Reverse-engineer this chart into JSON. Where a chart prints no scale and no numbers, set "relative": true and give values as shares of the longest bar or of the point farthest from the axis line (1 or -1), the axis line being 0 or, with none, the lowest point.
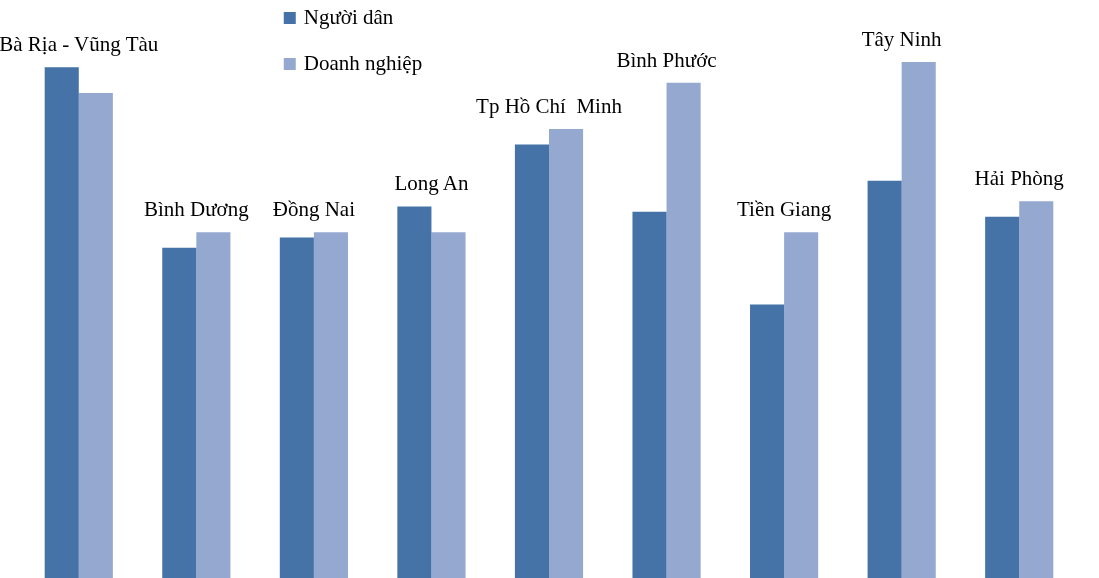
{
  "chart_data": {
    "type": "bar",
    "relative": true,
    "legend": "top",
    "categories": [
      "Bà Rịa - Vũng Tàu",
      "Bình Dương",
      "Đồng Nai",
      "Long An",
      "Tp Hồ Chí  Minh",
      "Bình Phước",
      "Tiền Giang",
      "Tây Ninh",
      "Hải Phòng"
    ],
    "series": [
      {
        "name": "Người dân",
        "color": "#4572a7",
        "values": [
          0.99,
          0.64,
          0.66,
          0.72,
          0.84,
          0.71,
          0.53,
          0.77,
          0.7
        ]
      },
      {
        "name": "Doanh nghiệp",
        "color": "#95a9d0",
        "values": [
          0.94,
          0.67,
          0.67,
          0.67,
          0.87,
          0.96,
          0.67,
          1,
          0.73
        ]
      }
    ]
  }
}
